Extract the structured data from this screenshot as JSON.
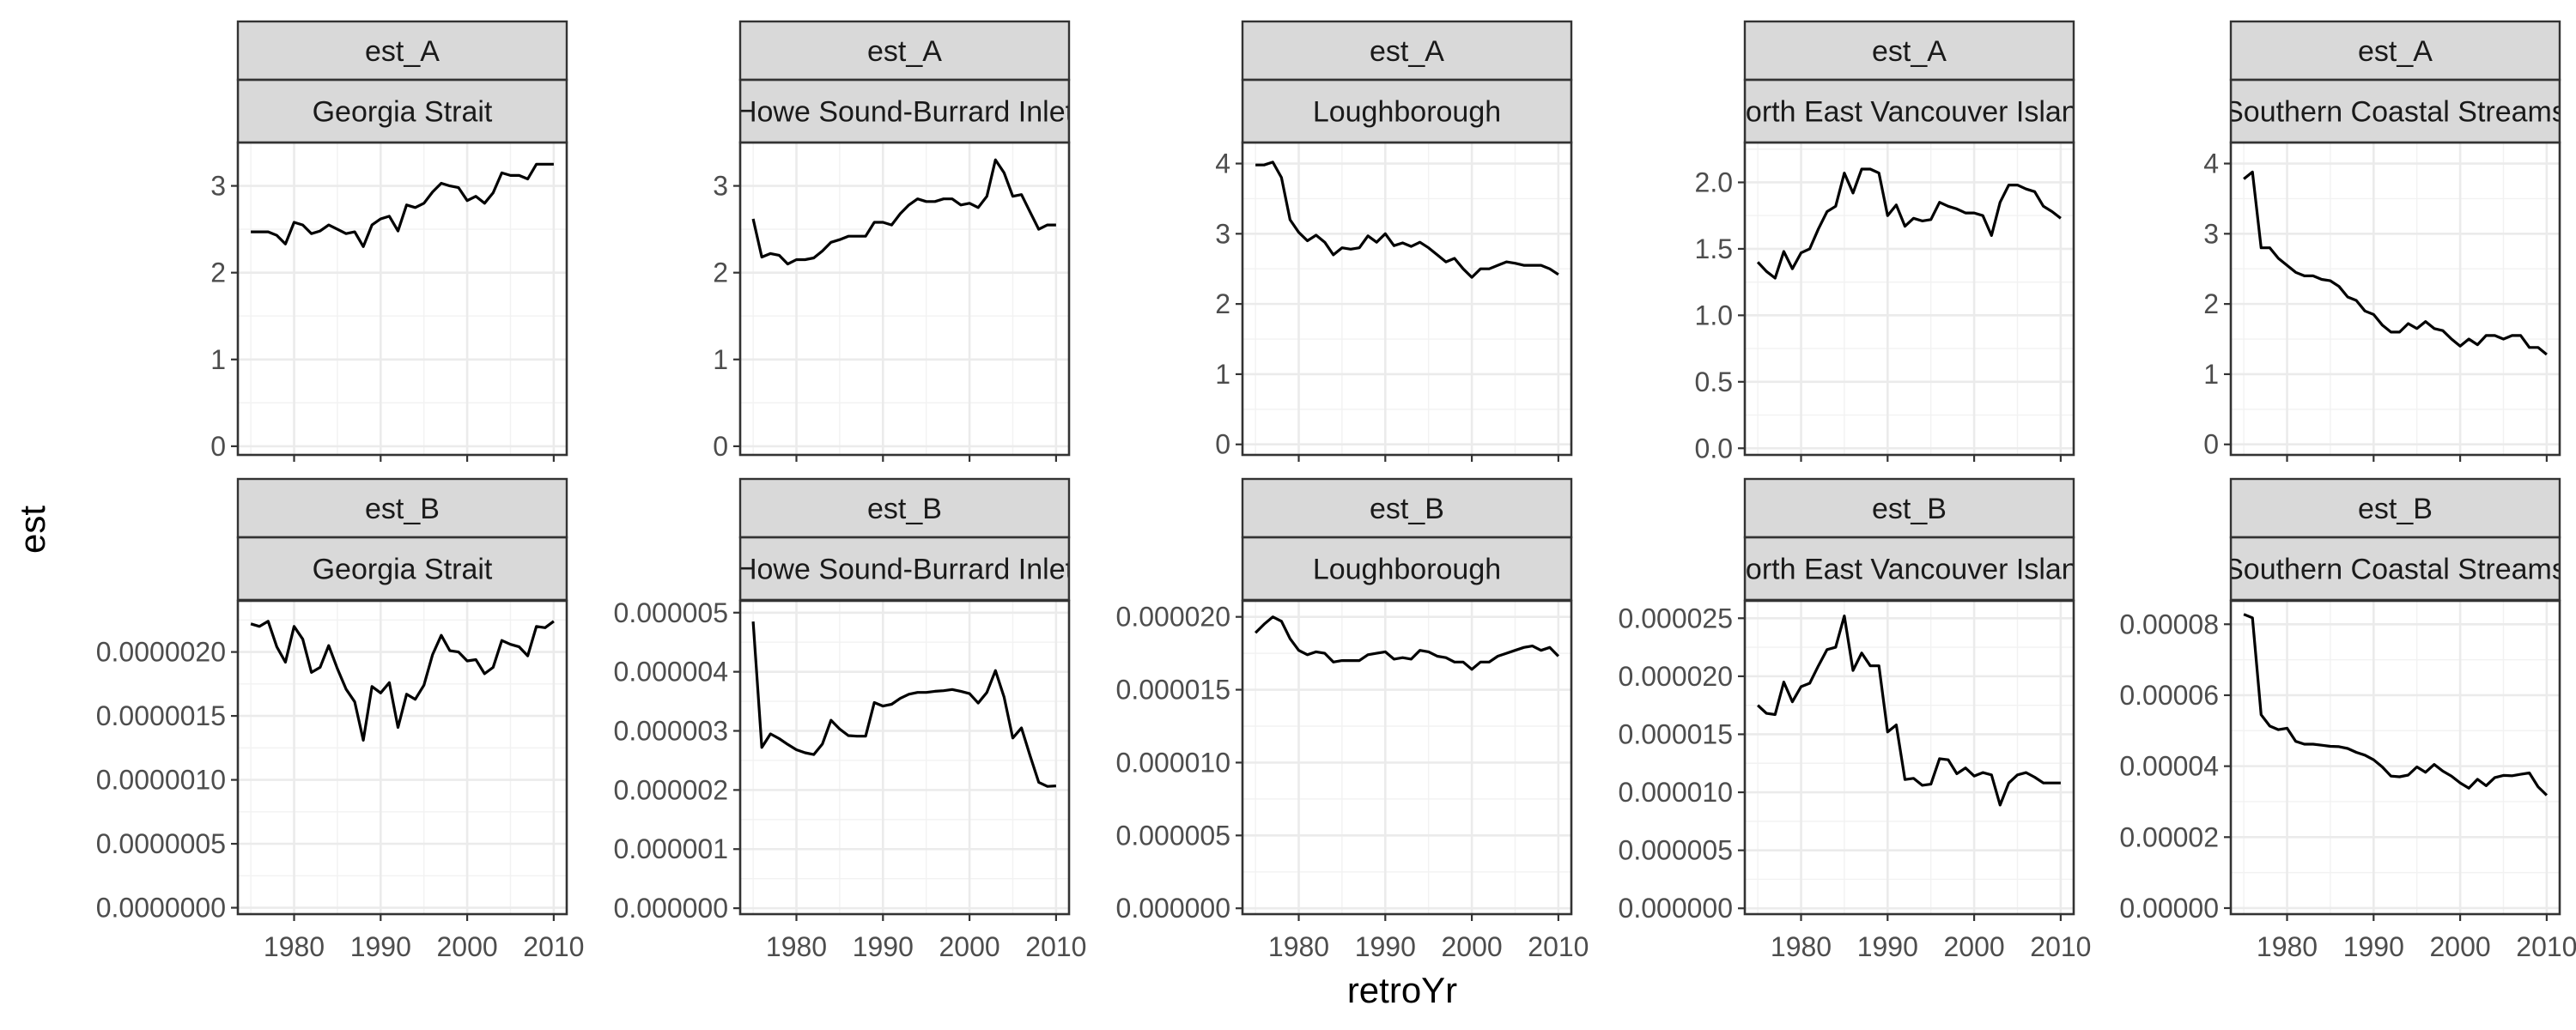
{
  "chart_data": {
    "type": "line",
    "title": "",
    "xlabel": "retroYr",
    "ylabel": "est",
    "grid": true,
    "xlim": [
      1973.5,
      2011.5
    ],
    "x_ticks": [
      1980,
      1990,
      2000,
      2010
    ],
    "x_tick_labels": [
      "1980",
      "1990",
      "2000",
      "2010"
    ],
    "rows": [
      "est_A",
      "est_B"
    ],
    "columns": [
      "Georgia Strait",
      "Howe Sound-Burrard Inlet",
      "Loughborough",
      "North East Vancouver Island",
      "Southern Coastal Streams"
    ],
    "panels": [
      {
        "row_label": "est_A",
        "col_label": "Georgia Strait",
        "strip_text": "Georgia Strait",
        "ylim": [
          -0.1,
          3.5
        ],
        "y_ticks": [
          0,
          1,
          2,
          3
        ],
        "y_tick_labels": [
          "0",
          "1",
          "2",
          "3"
        ],
        "x": [
          1975,
          1976,
          1977,
          1978,
          1979,
          1980,
          1981,
          1982,
          1983,
          1984,
          1985,
          1986,
          1987,
          1988,
          1989,
          1990,
          1991,
          1992,
          1993,
          1994,
          1995,
          1996,
          1997,
          1998,
          1999,
          2000,
          2001,
          2002,
          2003,
          2004,
          2005,
          2006,
          2007,
          2008,
          2009,
          2010
        ],
        "values": [
          2.47,
          2.47,
          2.47,
          2.43,
          2.33,
          2.58,
          2.55,
          2.45,
          2.48,
          2.55,
          2.5,
          2.45,
          2.47,
          2.3,
          2.55,
          2.62,
          2.65,
          2.48,
          2.78,
          2.75,
          2.8,
          2.93,
          3.03,
          3.0,
          2.98,
          2.83,
          2.88,
          2.8,
          2.92,
          3.15,
          3.12,
          3.12,
          3.08,
          3.25,
          3.25,
          3.25
        ]
      },
      {
        "row_label": "est_A",
        "col_label": "Howe Sound-Burrard Inlet",
        "strip_text": "Howe Sound-Burrard Inlet",
        "ylim": [
          -0.1,
          3.5
        ],
        "y_ticks": [
          0,
          1,
          2,
          3
        ],
        "y_tick_labels": [
          "0",
          "1",
          "2",
          "3"
        ],
        "x": [
          1975,
          1976,
          1977,
          1978,
          1979,
          1980,
          1981,
          1982,
          1983,
          1984,
          1985,
          1986,
          1987,
          1988,
          1989,
          1990,
          1991,
          1992,
          1993,
          1994,
          1995,
          1996,
          1997,
          1998,
          1999,
          2000,
          2001,
          2002,
          2003,
          2004,
          2005,
          2006,
          2007,
          2008,
          2009,
          2010
        ],
        "values": [
          2.62,
          2.18,
          2.22,
          2.2,
          2.1,
          2.15,
          2.15,
          2.17,
          2.25,
          2.35,
          2.38,
          2.42,
          2.42,
          2.42,
          2.58,
          2.58,
          2.55,
          2.68,
          2.78,
          2.85,
          2.82,
          2.82,
          2.85,
          2.85,
          2.78,
          2.8,
          2.75,
          2.88,
          3.3,
          3.15,
          2.88,
          2.9,
          2.7,
          2.5,
          2.55,
          2.55
        ]
      },
      {
        "row_label": "est_A",
        "col_label": "Loughborough",
        "strip_text": "Loughborough",
        "ylim": [
          -0.15,
          4.3
        ],
        "y_ticks": [
          0,
          1,
          2,
          3,
          4
        ],
        "y_tick_labels": [
          "0",
          "1",
          "2",
          "3",
          "4"
        ],
        "x": [
          1975,
          1976,
          1977,
          1978,
          1979,
          1980,
          1981,
          1982,
          1983,
          1984,
          1985,
          1986,
          1987,
          1988,
          1989,
          1990,
          1991,
          1992,
          1993,
          1994,
          1995,
          1996,
          1997,
          1998,
          1999,
          2000,
          2001,
          2002,
          2003,
          2004,
          2005,
          2006,
          2007,
          2008,
          2009,
          2010
        ],
        "values": [
          3.98,
          3.98,
          4.02,
          3.8,
          3.2,
          3.02,
          2.9,
          2.98,
          2.88,
          2.7,
          2.8,
          2.78,
          2.8,
          2.97,
          2.88,
          3.0,
          2.83,
          2.87,
          2.82,
          2.88,
          2.8,
          2.7,
          2.6,
          2.65,
          2.5,
          2.38,
          2.5,
          2.5,
          2.55,
          2.6,
          2.58,
          2.55,
          2.55,
          2.55,
          2.5,
          2.42
        ]
      },
      {
        "row_label": "est_A",
        "col_label": "North East Vancouver Island",
        "strip_text": "North East Vancouver Island",
        "ylim": [
          -0.05,
          2.3
        ],
        "y_ticks": [
          0,
          0.5,
          1,
          1.5,
          2
        ],
        "y_tick_labels": [
          "0.0",
          "0.5",
          "1.0",
          "1.5",
          "2.0"
        ],
        "x": [
          1975,
          1976,
          1977,
          1978,
          1979,
          1980,
          1981,
          1982,
          1983,
          1984,
          1985,
          1986,
          1987,
          1988,
          1989,
          1990,
          1991,
          1992,
          1993,
          1994,
          1995,
          1996,
          1997,
          1998,
          1999,
          2000,
          2001,
          2002,
          2003,
          2004,
          2005,
          2006,
          2007,
          2008,
          2009,
          2010
        ],
        "values": [
          1.4,
          1.33,
          1.28,
          1.48,
          1.35,
          1.47,
          1.5,
          1.65,
          1.78,
          1.82,
          2.07,
          1.92,
          2.1,
          2.1,
          2.07,
          1.75,
          1.83,
          1.67,
          1.73,
          1.71,
          1.72,
          1.85,
          1.82,
          1.8,
          1.77,
          1.77,
          1.75,
          1.6,
          1.85,
          1.98,
          1.98,
          1.95,
          1.93,
          1.82,
          1.78,
          1.73
        ]
      },
      {
        "row_label": "est_A",
        "col_label": "Southern Coastal Streams",
        "strip_text": "Southern Coastal Streams",
        "ylim": [
          -0.15,
          4.3
        ],
        "y_ticks": [
          0,
          1,
          2,
          3,
          4
        ],
        "y_tick_labels": [
          "0",
          "1",
          "2",
          "3",
          "4"
        ],
        "x": [
          1975,
          1976,
          1977,
          1978,
          1979,
          1980,
          1981,
          1982,
          1983,
          1984,
          1985,
          1986,
          1987,
          1988,
          1989,
          1990,
          1991,
          1992,
          1993,
          1994,
          1995,
          1996,
          1997,
          1998,
          1999,
          2000,
          2001,
          2002,
          2003,
          2004,
          2005,
          2006,
          2007,
          2008,
          2009,
          2010
        ],
        "values": [
          3.78,
          3.88,
          2.8,
          2.8,
          2.65,
          2.55,
          2.45,
          2.4,
          2.4,
          2.35,
          2.33,
          2.25,
          2.1,
          2.05,
          1.9,
          1.85,
          1.7,
          1.6,
          1.6,
          1.72,
          1.65,
          1.75,
          1.65,
          1.62,
          1.5,
          1.4,
          1.5,
          1.42,
          1.55,
          1.55,
          1.5,
          1.55,
          1.55,
          1.38,
          1.38,
          1.28
        ]
      },
      {
        "row_label": "est_B",
        "col_label": "Georgia Strait",
        "strip_text": "Georgia Strait",
        "ylim": [
          -5e-08,
          2.4e-06
        ],
        "y_ticks": [
          0,
          5e-07,
          1e-06,
          1.5e-06,
          2e-06
        ],
        "y_tick_labels": [
          "0.0000000",
          "0.0000005",
          "0.0000010",
          "0.0000015",
          "0.0000020"
        ],
        "x": [
          1975,
          1976,
          1977,
          1978,
          1979,
          1980,
          1981,
          1982,
          1983,
          1984,
          1985,
          1986,
          1987,
          1988,
          1989,
          1990,
          1991,
          1992,
          1993,
          1994,
          1995,
          1996,
          1997,
          1998,
          1999,
          2000,
          2001,
          2002,
          2003,
          2004,
          2005,
          2006,
          2007,
          2008,
          2009,
          2010
        ],
        "values": [
          2.22e-06,
          2.2e-06,
          2.24e-06,
          2.04e-06,
          1.92e-06,
          2.2e-06,
          2.1e-06,
          1.84e-06,
          1.88e-06,
          2.05e-06,
          1.87e-06,
          1.71e-06,
          1.61e-06,
          1.31e-06,
          1.73e-06,
          1.68e-06,
          1.76e-06,
          1.41e-06,
          1.67e-06,
          1.63e-06,
          1.74e-06,
          1.98e-06,
          2.13e-06,
          2.01e-06,
          2e-06,
          1.93e-06,
          1.94e-06,
          1.83e-06,
          1.88e-06,
          2.09e-06,
          2.06e-06,
          2.04e-06,
          1.97e-06,
          2.2e-06,
          2.19e-06,
          2.24e-06
        ]
      },
      {
        "row_label": "est_B",
        "col_label": "Howe Sound-Burrard Inlet",
        "strip_text": "Howe Sound-Burrard Inlet",
        "ylim": [
          -1e-07,
          5.2e-06
        ],
        "y_ticks": [
          0,
          1e-06,
          2e-06,
          3e-06,
          4e-06,
          5e-06
        ],
        "y_tick_labels": [
          "0.000000",
          "0.000001",
          "0.000002",
          "0.000003",
          "0.000004",
          "0.000005"
        ],
        "x": [
          1975,
          1976,
          1977,
          1978,
          1979,
          1980,
          1981,
          1982,
          1983,
          1984,
          1985,
          1986,
          1987,
          1988,
          1989,
          1990,
          1991,
          1992,
          1993,
          1994,
          1995,
          1996,
          1997,
          1998,
          1999,
          2000,
          2001,
          2002,
          2003,
          2004,
          2005,
          2006,
          2007,
          2008,
          2009,
          2010
        ],
        "values": [
          4.85e-06,
          2.72e-06,
          2.95e-06,
          2.87e-06,
          2.77e-06,
          2.68e-06,
          2.63e-06,
          2.6e-06,
          2.78e-06,
          3.18e-06,
          3.03e-06,
          2.92e-06,
          2.91e-06,
          2.91e-06,
          3.48e-06,
          3.42e-06,
          3.45e-06,
          3.55e-06,
          3.62e-06,
          3.65e-06,
          3.65e-06,
          3.67e-06,
          3.68e-06,
          3.7e-06,
          3.67e-06,
          3.63e-06,
          3.47e-06,
          3.65e-06,
          4.02e-06,
          3.57e-06,
          2.88e-06,
          3.05e-06,
          2.58e-06,
          2.13e-06,
          2.06e-06,
          2.07e-06
        ]
      },
      {
        "row_label": "est_B",
        "col_label": "Loughborough",
        "strip_text": "Loughborough",
        "ylim": [
          -4e-07,
          2.11e-05
        ],
        "y_ticks": [
          0,
          5e-06,
          1e-05,
          1.5e-05,
          2e-05
        ],
        "y_tick_labels": [
          "0.000000",
          "0.000005",
          "0.000010",
          "0.000015",
          "0.000020"
        ],
        "x": [
          1975,
          1976,
          1977,
          1978,
          1979,
          1980,
          1981,
          1982,
          1983,
          1984,
          1985,
          1986,
          1987,
          1988,
          1989,
          1990,
          1991,
          1992,
          1993,
          1994,
          1995,
          1996,
          1997,
          1998,
          1999,
          2000,
          2001,
          2002,
          2003,
          2004,
          2005,
          2006,
          2007,
          2008,
          2009,
          2010
        ],
        "values": [
          1.89e-05,
          1.95e-05,
          2e-05,
          1.97e-05,
          1.85e-05,
          1.77e-05,
          1.74e-05,
          1.76e-05,
          1.75e-05,
          1.69e-05,
          1.7e-05,
          1.7e-05,
          1.7e-05,
          1.74e-05,
          1.75e-05,
          1.76e-05,
          1.71e-05,
          1.72e-05,
          1.71e-05,
          1.77e-05,
          1.76e-05,
          1.73e-05,
          1.72e-05,
          1.69e-05,
          1.69e-05,
          1.64e-05,
          1.69e-05,
          1.69e-05,
          1.73e-05,
          1.75e-05,
          1.77e-05,
          1.79e-05,
          1.8e-05,
          1.77e-05,
          1.79e-05,
          1.73e-05
        ]
      },
      {
        "row_label": "est_B",
        "col_label": "North East Vancouver Island",
        "strip_text": "North East Vancouver Island",
        "ylim": [
          -5e-07,
          2.65e-05
        ],
        "y_ticks": [
          0,
          5e-06,
          1e-05,
          1.5e-05,
          2e-05,
          2.5e-05
        ],
        "y_tick_labels": [
          "0.000000",
          "0.000005",
          "0.000010",
          "0.000015",
          "0.000020",
          "0.000025"
        ],
        "x": [
          1975,
          1976,
          1977,
          1978,
          1979,
          1980,
          1981,
          1982,
          1983,
          1984,
          1985,
          1986,
          1987,
          1988,
          1989,
          1990,
          1991,
          1992,
          1993,
          1994,
          1995,
          1996,
          1997,
          1998,
          1999,
          2000,
          2001,
          2002,
          2003,
          2004,
          2005,
          2006,
          2007,
          2008,
          2009,
          2010
        ],
        "values": [
          1.75e-05,
          1.68e-05,
          1.67e-05,
          1.95e-05,
          1.78e-05,
          1.91e-05,
          1.94e-05,
          2.09e-05,
          2.23e-05,
          2.25e-05,
          2.52e-05,
          2.05e-05,
          2.2e-05,
          2.09e-05,
          2.09e-05,
          1.52e-05,
          1.58e-05,
          1.11e-05,
          1.12e-05,
          1.06e-05,
          1.07e-05,
          1.29e-05,
          1.28e-05,
          1.16e-05,
          1.21e-05,
          1.14e-05,
          1.17e-05,
          1.15e-05,
          8.9e-06,
          1.08e-05,
          1.15e-05,
          1.17e-05,
          1.13e-05,
          1.08e-05,
          1.08e-05,
          1.08e-05
        ]
      },
      {
        "row_label": "est_B",
        "col_label": "Southern Coastal Streams",
        "strip_text": "Southern Coastal Streams",
        "ylim": [
          -1.7e-06,
          8.66e-05
        ],
        "y_ticks": [
          0,
          2e-05,
          4e-05,
          6e-05,
          8e-05
        ],
        "y_tick_labels": [
          "0.00000",
          "0.00002",
          "0.00004",
          "0.00006",
          "0.00008"
        ],
        "x": [
          1975,
          1976,
          1977,
          1978,
          1979,
          1980,
          1981,
          1982,
          1983,
          1984,
          1985,
          1986,
          1987,
          1988,
          1989,
          1990,
          1991,
          1992,
          1993,
          1994,
          1995,
          1996,
          1997,
          1998,
          1999,
          2000,
          2001,
          2002,
          2003,
          2004,
          2005,
          2006,
          2007,
          2008,
          2009,
          2010
        ],
        "values": [
          8.28e-05,
          8.18e-05,
          5.45e-05,
          5.13e-05,
          5.03e-05,
          5.07e-05,
          4.7e-05,
          4.62e-05,
          4.62e-05,
          4.59e-05,
          4.56e-05,
          4.55e-05,
          4.5e-05,
          4.39e-05,
          4.31e-05,
          4.18e-05,
          3.98e-05,
          3.72e-05,
          3.7e-05,
          3.75e-05,
          3.98e-05,
          3.83e-05,
          4.05e-05,
          3.86e-05,
          3.72e-05,
          3.53e-05,
          3.38e-05,
          3.63e-05,
          3.45e-05,
          3.68e-05,
          3.74e-05,
          3.73e-05,
          3.77e-05,
          3.81e-05,
          3.42e-05,
          3.18e-05
        ]
      }
    ]
  }
}
